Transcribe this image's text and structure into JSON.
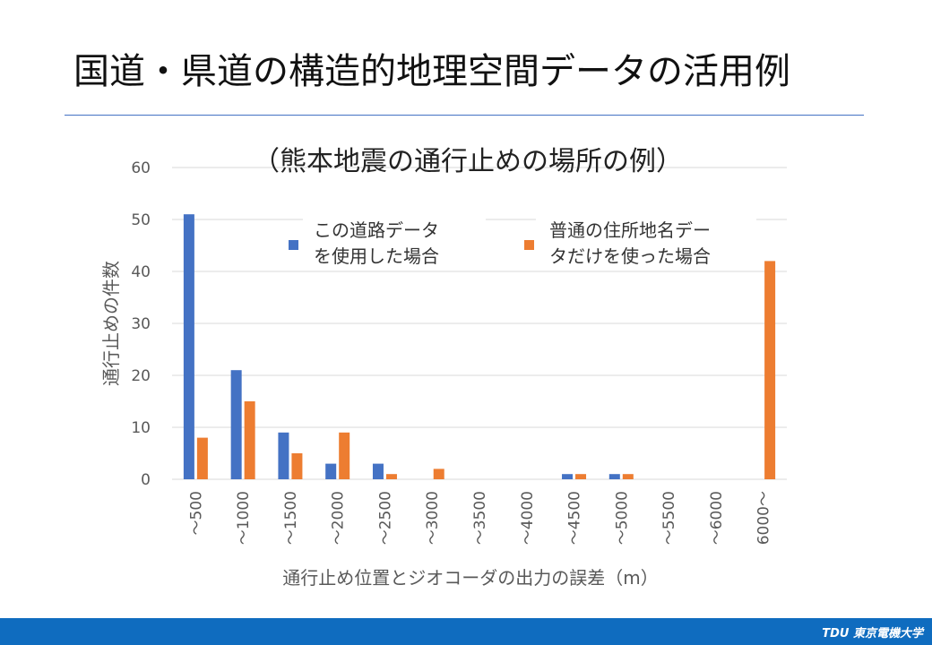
{
  "slide": {
    "title": "国道・県道の構造的地理空間データの活用例",
    "footer_logo": "TDU 東京電機大学"
  },
  "colors": {
    "series1": "#4472c4",
    "series2": "#ed7d31",
    "rule": "#4472c4",
    "footer": "#0f6cbf",
    "grid": "#d9d9d9",
    "axis_text": "#595959"
  },
  "chart_data": {
    "type": "bar",
    "title": "（熊本地震の通行止めの場所の例）",
    "xlabel": "通行止め位置とジオコーダの出力の誤差（m）",
    "ylabel": "通行止めの件数",
    "ylim": [
      0,
      60
    ],
    "yticks": [
      0,
      10,
      20,
      30,
      40,
      50,
      60
    ],
    "grid": true,
    "legend": "top-center",
    "categories": [
      "～500",
      "～1000",
      "～1500",
      "～2000",
      "～2500",
      "～3000",
      "～3500",
      "～4000",
      "～4500",
      "～5000",
      "～5500",
      "～6000",
      "6000～"
    ],
    "series": [
      {
        "name": "この道路データを使用した場合",
        "legend_lines": [
          "この道路データ",
          "を使用した場合"
        ],
        "values": [
          51,
          21,
          9,
          3,
          3,
          0,
          0,
          0,
          1,
          1,
          0,
          0,
          0
        ]
      },
      {
        "name": "普通の住所地名データだけを使った場合",
        "legend_lines": [
          "普通の住所地名デー",
          "タだけを使った場合"
        ],
        "values": [
          8,
          15,
          5,
          9,
          1,
          2,
          0,
          0,
          1,
          1,
          0,
          0,
          42
        ]
      }
    ]
  }
}
